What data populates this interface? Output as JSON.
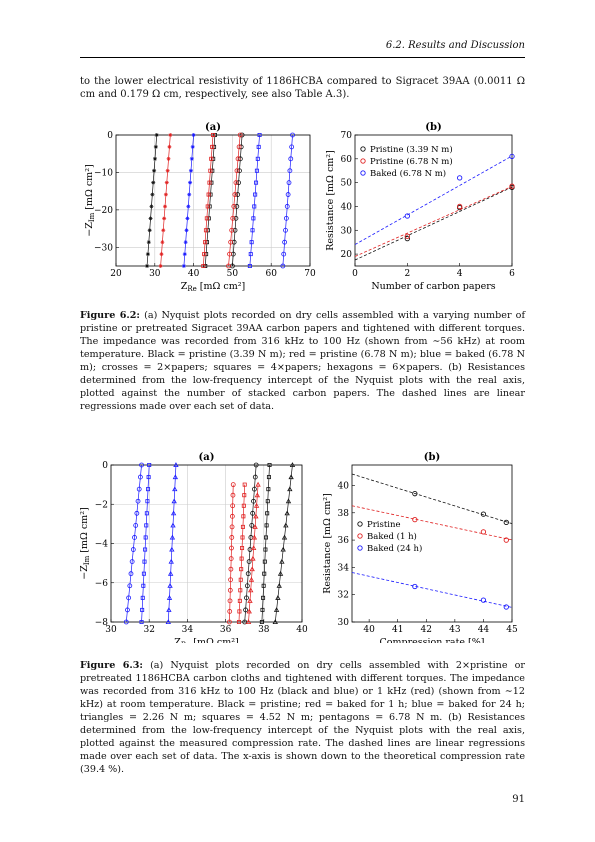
{
  "header": {
    "section": "6.2.  Results and Discussion"
  },
  "intro_text": "to the lower electrical resistivity of 1186HCBA compared to Sigracet 39AA (0.0011 Ω cm and 0.179 Ω cm, respectively, see also Table A.3).",
  "page_number": "91",
  "colors": {
    "black": "#111111",
    "red": "#e02020",
    "blue": "#1a1aff",
    "grid": "#cccccc"
  },
  "figure_6_2": {
    "caption_label": "Figure 6.2:",
    "caption_text": "(a) Nyquist plots recorded on dry cells assembled with a varying number of pristine or pretreated Sigracet 39AA carbon papers and tightened with different torques. The impedance was recorded from 316 kHz to 100 Hz (shown from ∼56 kHz) at room temperature. Black = pristine (3.39 N m); red = pristine (6.78 N m); blue = baked (6.78 N m); crosses = 2×papers; squares = 4×papers; hexagons = 6×papers. (b) Resistances determined from the low-frequency intercept of the Nyquist plots with the real axis, plotted against the number of stacked carbon papers. The dashed lines are linear regressions made over each set of data.",
    "panel_a_label": "(a)",
    "panel_b_label": "(b)",
    "panel_a_xlabel_main": "Z",
    "panel_a_xlabel_sub": "Re",
    "panel_a_xlabel_unit": "[mΩ cm²]",
    "panel_a_ylabel_main": "−Z",
    "panel_a_ylabel_sub": "Im",
    "panel_a_ylabel_unit": "[mΩ cm²]",
    "panel_b_xlabel": "Number of carbon papers",
    "panel_b_ylabel": "Resistance [mΩ cm²]",
    "panel_b_legend": [
      "Pristine (3.39 N m)",
      "Pristine (6.78 N m)",
      "Baked (6.78 N m)"
    ]
  },
  "figure_6_3": {
    "caption_label": "Figure 6.3:",
    "caption_text": "(a) Nyquist plots recorded on dry cells assembled with 2×pristine or pretreated 1186HCBA carbon cloths and tightened with different torques. The impedance was recorded from 316 kHz to 100 Hz (black and blue) or 1 kHz (red) (shown from ∼12 kHz) at room temperature. Black = pristine; red = baked for 1 h; blue = baked for 24 h; triangles = 2.26 N m; squares = 4.52 N m; pentagons = 6.78 N m. (b) Resistances determined from the low-frequency intercept of the Nyquist plots with the real axis, plotted against the measured compression rate. The dashed lines are linear regressions made over each set of data. The x-axis is shown down to the theoretical compression rate (39.4 %).",
    "panel_a_label": "(a)",
    "panel_b_label": "(b)",
    "panel_a_xlabel_main": "Z",
    "panel_a_xlabel_sub": "Re",
    "panel_a_xlabel_unit": "[mΩ cm²]",
    "panel_a_ylabel_main": "−Z",
    "panel_a_ylabel_sub": "Im",
    "panel_a_ylabel_unit": "[mΩ cm²]",
    "panel_b_xlabel": "Compression rate [%]",
    "panel_b_ylabel": "Resistance [mΩ cm²]",
    "panel_b_legend": [
      "Pristine",
      "Baked (1 h)",
      "Baked (24 h)"
    ]
  },
  "chart_data": [
    {
      "id": "fig62a",
      "type": "scatter",
      "title": "(a)",
      "xlabel": "Z_Re [mΩ cm²]",
      "ylabel": "−Z_Im [mΩ cm²]",
      "xlim": [
        20,
        70
      ],
      "ylim": [
        -35,
        0
      ],
      "xticks": [
        20,
        30,
        40,
        50,
        60,
        70
      ],
      "yticks": [
        0,
        -10,
        -20,
        -30
      ],
      "grid": true,
      "series": [
        {
          "color": "black",
          "marker": "cross",
          "x0": 28.0,
          "x1": 30.5
        },
        {
          "color": "black",
          "marker": "square",
          "x0": 43.0,
          "x1": 45.5
        },
        {
          "color": "black",
          "marker": "hexagon",
          "x0": 50.0,
          "x1": 52.5
        },
        {
          "color": "red",
          "marker": "cross",
          "x0": 31.5,
          "x1": 34.0
        },
        {
          "color": "red",
          "marker": "square",
          "x0": 42.5,
          "x1": 45.0
        },
        {
          "color": "red",
          "marker": "hexagon",
          "x0": 49.0,
          "x1": 52.0
        },
        {
          "color": "blue",
          "marker": "cross",
          "x0": 37.5,
          "x1": 40.0
        },
        {
          "color": "blue",
          "marker": "square",
          "x0": 54.5,
          "x1": 57.0
        },
        {
          "color": "blue",
          "marker": "hexagon",
          "x0": 63.0,
          "x1": 65.5
        }
      ]
    },
    {
      "id": "fig62b",
      "type": "scatter",
      "title": "(b)",
      "xlabel": "Number of carbon papers",
      "ylabel": "Resistance [mΩ cm²]",
      "xlim": [
        0,
        6
      ],
      "ylim": [
        15,
        70
      ],
      "xticks": [
        0,
        2,
        4,
        6
      ],
      "yticks": [
        20,
        30,
        40,
        50,
        60,
        70
      ],
      "legend": "top-left",
      "series": [
        {
          "name": "Pristine (3.39 N m)",
          "color": "black",
          "x": [
            2,
            4,
            6
          ],
          "y": [
            26.5,
            39.5,
            48
          ],
          "fit": [
            17.5,
            5.1
          ]
        },
        {
          "name": "Pristine (6.78 N m)",
          "color": "red",
          "x": [
            2,
            4,
            6
          ],
          "y": [
            27.5,
            40,
            48.5
          ],
          "fit": [
            19.0,
            4.9
          ]
        },
        {
          "name": "Baked (6.78 N m)",
          "color": "blue",
          "x": [
            2,
            4,
            6
          ],
          "y": [
            36,
            52,
            61
          ],
          "fit": [
            24.0,
            6.2
          ]
        }
      ]
    },
    {
      "id": "fig63a",
      "type": "scatter",
      "title": "(a)",
      "xlabel": "Z_Re [mΩ cm²]",
      "ylabel": "−Z_Im [mΩ cm²]",
      "xlim": [
        30,
        40
      ],
      "ylim": [
        -8,
        0
      ],
      "xticks": [
        30,
        32,
        34,
        36,
        38,
        40
      ],
      "yticks": [
        0,
        -2,
        -4,
        -6,
        -8
      ],
      "grid": true,
      "series": [
        {
          "color": "blue",
          "marker": "triangle",
          "x0": 33.0,
          "x1": 33.4
        },
        {
          "color": "blue",
          "marker": "square",
          "x0": 31.6,
          "x1": 32.0
        },
        {
          "color": "blue",
          "marker": "pentagon",
          "x0": 30.8,
          "x1": 31.6
        },
        {
          "color": "black",
          "marker": "triangle",
          "x0": 38.6,
          "x1": 39.5
        },
        {
          "color": "black",
          "marker": "square",
          "x0": 37.9,
          "x1": 38.3
        },
        {
          "color": "black",
          "marker": "pentagon",
          "x0": 37.0,
          "x1": 37.6
        },
        {
          "color": "red",
          "marker": "triangle",
          "x0": 37.2,
          "x1": 37.7,
          "ytop": -1.0
        },
        {
          "color": "red",
          "marker": "square",
          "x0": 36.7,
          "x1": 37.0,
          "ytop": -1.0
        },
        {
          "color": "red",
          "marker": "pentagon",
          "x0": 36.2,
          "x1": 36.4,
          "ytop": -1.0
        }
      ]
    },
    {
      "id": "fig63b",
      "type": "scatter",
      "title": "(b)",
      "xlabel": "Compression rate [%]",
      "ylabel": "Resistance [mΩ cm²]",
      "xlim": [
        39.4,
        45
      ],
      "ylim": [
        30,
        41.5
      ],
      "xticks": [
        40,
        41,
        42,
        43,
        44,
        45
      ],
      "yticks": [
        30,
        32,
        34,
        36,
        38,
        40
      ],
      "legend": "center-left",
      "series": [
        {
          "name": "Pristine",
          "color": "black",
          "x": [
            41.6,
            44.0,
            44.8
          ],
          "y": [
            39.4,
            37.9,
            37.3
          ]
        },
        {
          "name": "Baked (1 h)",
          "color": "red",
          "x": [
            41.6,
            44.0,
            44.8
          ],
          "y": [
            37.5,
            36.6,
            36.0
          ]
        },
        {
          "name": "Baked (24 h)",
          "color": "blue",
          "x": [
            41.6,
            44.0,
            44.8
          ],
          "y": [
            32.6,
            31.6,
            31.1
          ]
        }
      ]
    }
  ]
}
